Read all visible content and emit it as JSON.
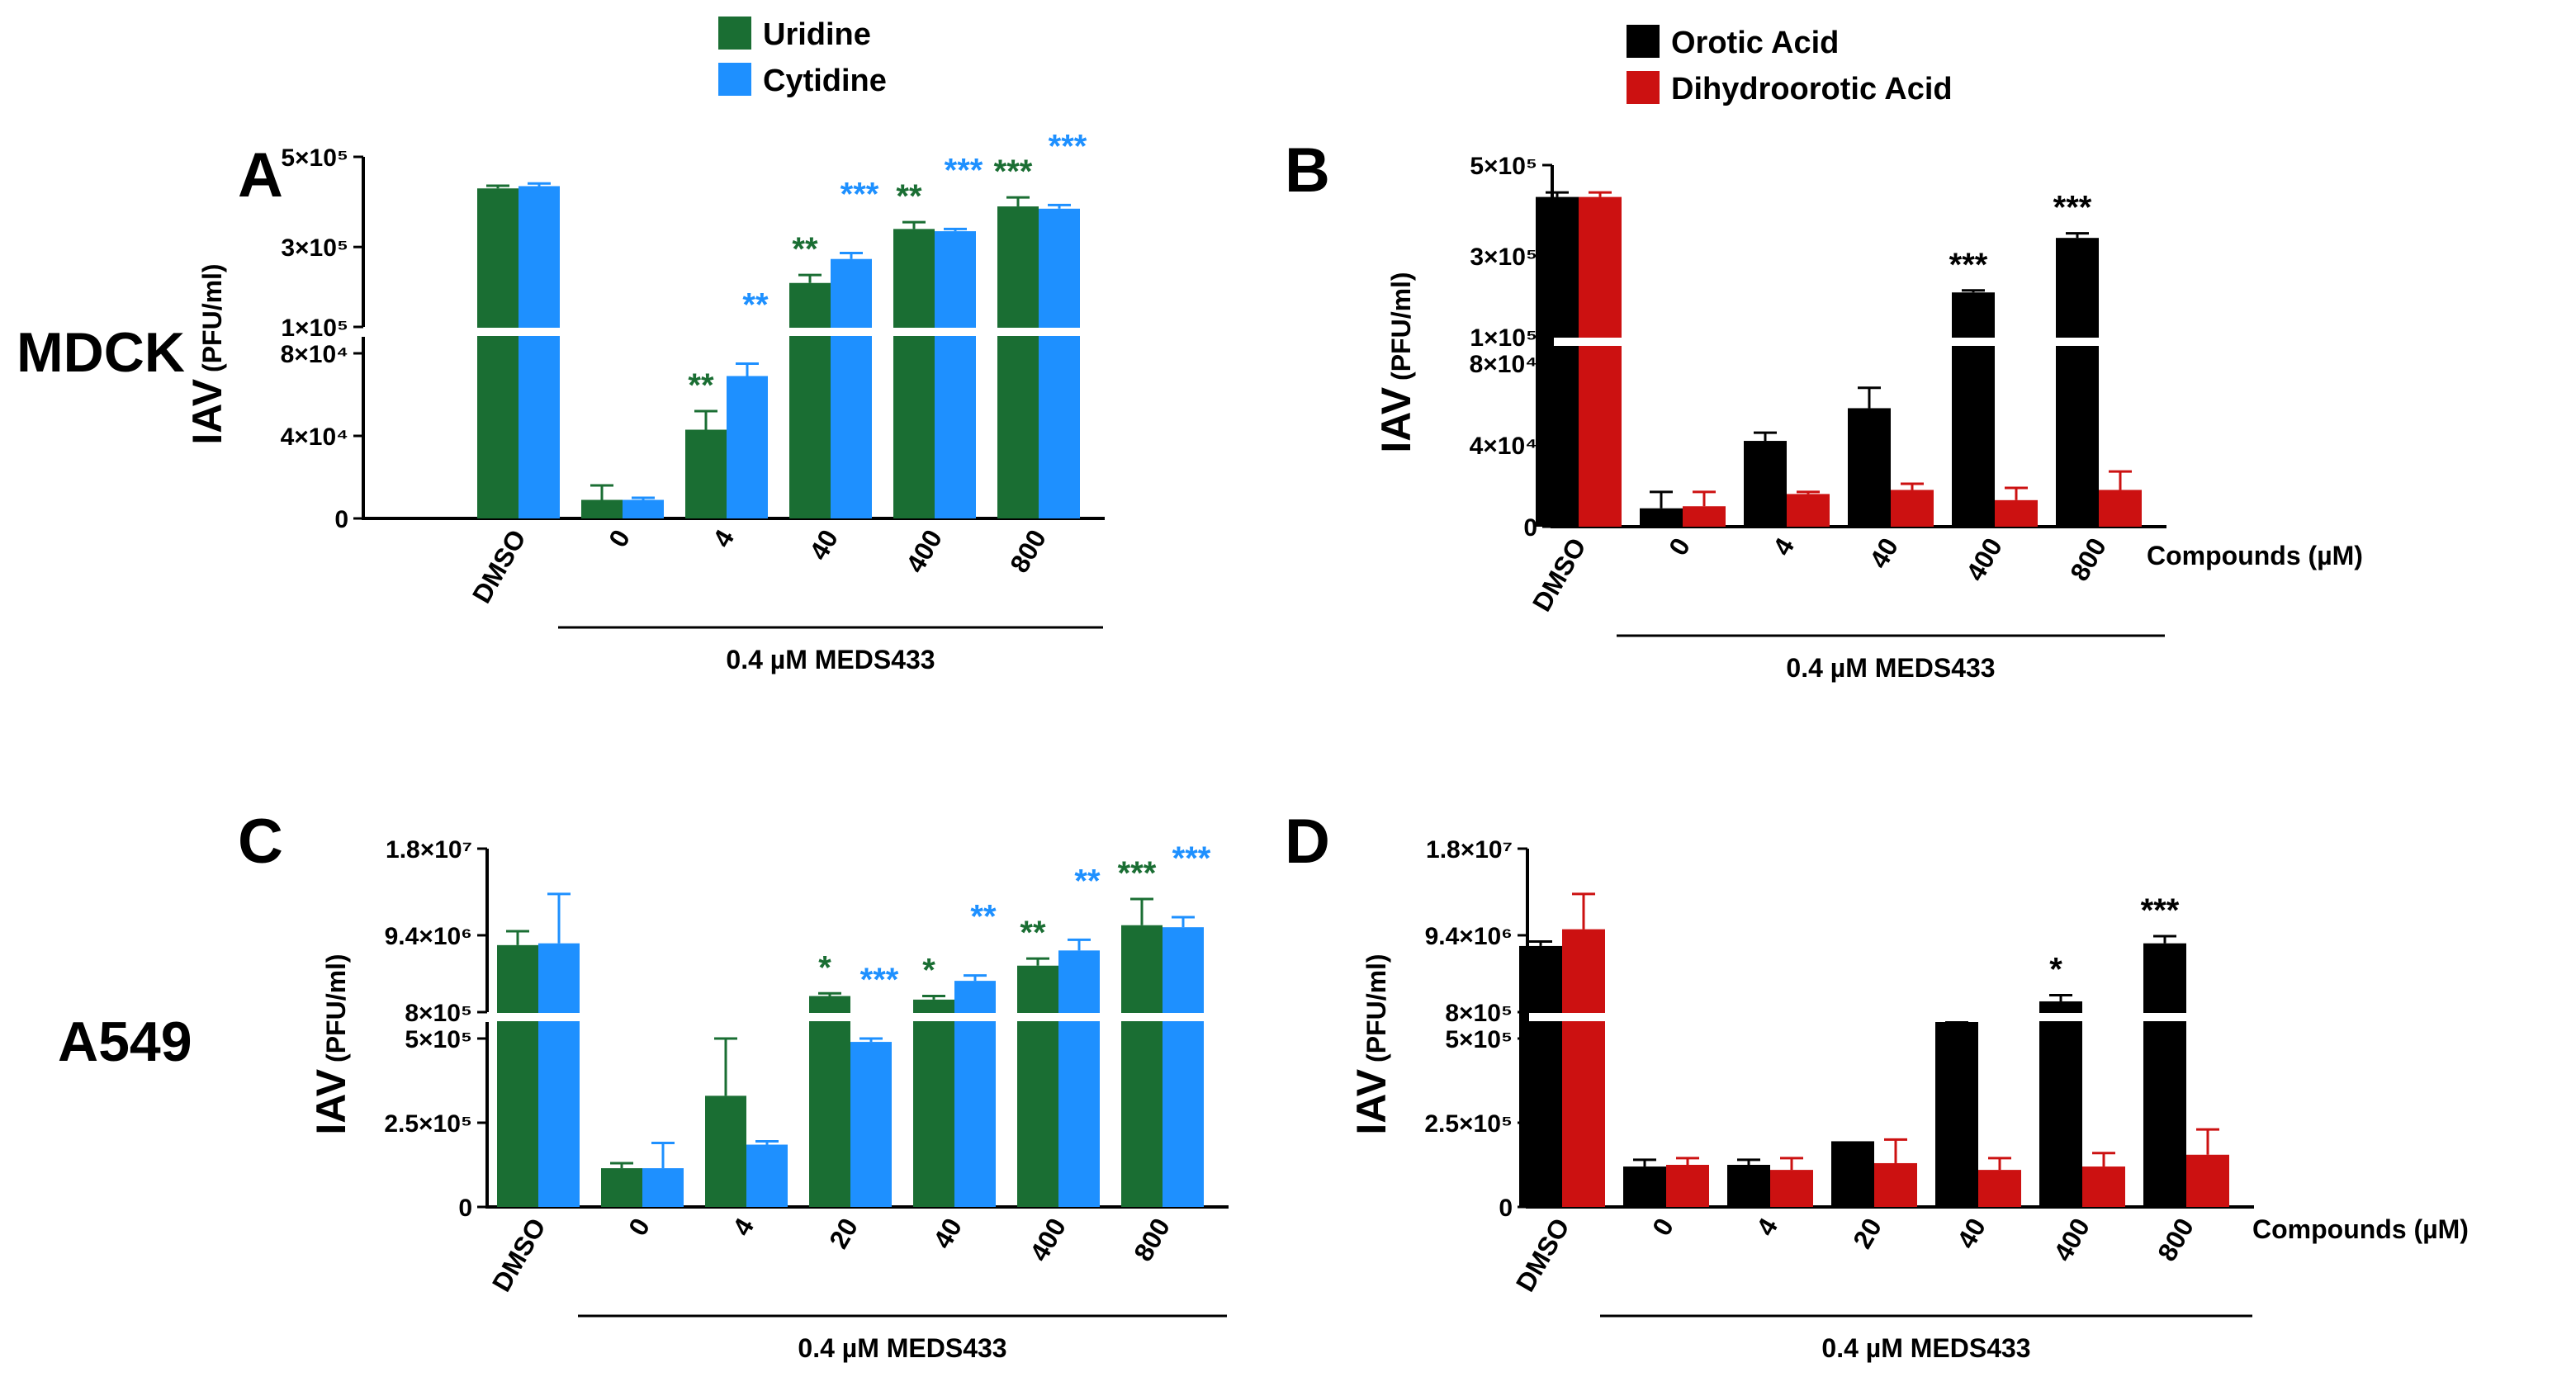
{
  "row_labels": [
    "MDCK",
    "A549"
  ],
  "colors": {
    "uridine": "#1a6e33",
    "cytidine": "#1e90ff",
    "orotic": "#000000",
    "dihydro": "#cc1111",
    "axis": "#000000"
  },
  "chart_data": [
    {
      "id": "A",
      "panel": "A",
      "type": "bar",
      "row": 0,
      "col": 0,
      "legend": [
        "Uridine",
        "Cytidine"
      ],
      "categories": [
        "DMSO",
        "0",
        "4",
        "40",
        "400",
        "800"
      ],
      "group_label": "0.4 µM MEDS433",
      "group_start": 1,
      "xlabel": "",
      "ylabel_main": "IAV",
      "ylabel_unit": "(PFU/ml)",
      "yticks": [
        {
          "label": "0",
          "value": 0
        },
        {
          "label": "4×10⁴",
          "value": 40000
        },
        {
          "label": "8×10⁴",
          "value": 80000
        },
        {
          "label": "1×10⁵",
          "value": 100000
        },
        {
          "label": "3×10⁵",
          "value": 300000
        },
        {
          "label": "5×10⁵",
          "value": 500000
        }
      ],
      "series": [
        {
          "name": "Uridine",
          "color": "#1a6e33",
          "values": [
            430000,
            9000,
            43000,
            210000,
            340000,
            390000
          ],
          "errors": [
            6000,
            7000,
            9000,
            20000,
            15000,
            20000
          ],
          "stars": [
            "",
            "",
            "**",
            "**",
            "**",
            "***"
          ]
        },
        {
          "name": "Cytidine",
          "color": "#1e90ff",
          "values": [
            435000,
            9000,
            69000,
            270000,
            335000,
            385000
          ],
          "errors": [
            6000,
            1000,
            6000,
            15000,
            5000,
            8000
          ],
          "stars": [
            "",
            "",
            "**",
            "***",
            "***",
            "***"
          ]
        }
      ]
    },
    {
      "id": "B",
      "panel": "B",
      "type": "bar",
      "row": 0,
      "col": 1,
      "legend": [
        "Orotic Acid",
        "Dihydroorotic Acid"
      ],
      "categories": [
        "DMSO",
        "0",
        "4",
        "40",
        "400",
        "800"
      ],
      "group_label": "0.4 µM MEDS433",
      "group_start": 1,
      "xlabel": "Compounds (µM)",
      "ylabel_main": "IAV",
      "ylabel_unit": "(PFU/ml)",
      "yticks": [
        {
          "label": "0",
          "value": 0
        },
        {
          "label": "4×10⁴",
          "value": 40000
        },
        {
          "label": "8×10⁴",
          "value": 80000
        },
        {
          "label": "1×10⁵",
          "value": 100000
        },
        {
          "label": "3×10⁵",
          "value": 300000
        },
        {
          "label": "5×10⁵",
          "value": 500000
        }
      ],
      "series": [
        {
          "name": "Orotic Acid",
          "color": "#000000",
          "values": [
            430000,
            9000,
            42000,
            58000,
            210000,
            340000
          ],
          "errors": [
            10000,
            8000,
            4000,
            10000,
            5000,
            10000
          ],
          "stars": [
            "",
            "",
            "",
            "",
            "***",
            "***"
          ]
        },
        {
          "name": "Dihydroorotic Acid",
          "color": "#cc1111",
          "values": [
            430000,
            10000,
            16000,
            18000,
            13000,
            18000
          ],
          "errors": [
            10000,
            7000,
            1000,
            3000,
            6000,
            9000
          ],
          "stars": [
            "",
            "",
            "",
            "",
            "",
            ""
          ]
        }
      ]
    },
    {
      "id": "C",
      "panel": "C",
      "type": "bar",
      "row": 1,
      "col": 0,
      "legend": [],
      "categories": [
        "DMSO",
        "0",
        "4",
        "20",
        "40",
        "400",
        "800"
      ],
      "group_label": "0.4 µM MEDS433",
      "group_start": 1,
      "xlabel": "",
      "ylabel_main": "IAV",
      "ylabel_unit": "(PFU/ml)",
      "yticks": [
        {
          "label": "0",
          "value": 0
        },
        {
          "label": "2.5×10⁵",
          "value": 250000
        },
        {
          "label": "5×10⁵",
          "value": 500000
        },
        {
          "label": "8×10⁵",
          "value": 800000
        },
        {
          "label": "9.4×10⁶",
          "value": 9400000
        },
        {
          "label": "1.8×10⁷",
          "value": 18000000
        }
      ],
      "series": [
        {
          "name": "Uridine",
          "color": "#1a6e33",
          "values": [
            8300000,
            115000,
            330000,
            2600000,
            2200000,
            6000000,
            10400000
          ],
          "errors": [
            1500000,
            15000,
            170000,
            300000,
            400000,
            800000,
            2600000
          ],
          "stars": [
            "",
            "",
            "",
            "*",
            "*",
            "**",
            "***"
          ]
        },
        {
          "name": "Cytidine",
          "color": "#1e90ff",
          "values": [
            8500000,
            115000,
            185000,
            490000,
            4300000,
            7700000,
            10200000
          ],
          "errors": [
            5000000,
            75000,
            10000,
            10000,
            600000,
            1200000,
            1000000
          ],
          "stars": [
            "",
            "",
            "",
            "***",
            "**",
            "**",
            "***"
          ]
        }
      ]
    },
    {
      "id": "D",
      "panel": "D",
      "type": "bar",
      "row": 1,
      "col": 1,
      "legend": [],
      "categories": [
        "DMSO",
        "0",
        "4",
        "20",
        "40",
        "400",
        "800"
      ],
      "group_label": "0.4 µM MEDS433",
      "group_start": 1,
      "xlabel": "Compounds (µM)",
      "ylabel_main": "IAV",
      "ylabel_unit": "(PFU/ml)",
      "yticks": [
        {
          "label": "0",
          "value": 0
        },
        {
          "label": "2.5×10⁵",
          "value": 250000
        },
        {
          "label": "5×10⁵",
          "value": 500000
        },
        {
          "label": "8×10⁵",
          "value": 800000
        },
        {
          "label": "9.4×10⁶",
          "value": 9400000
        },
        {
          "label": "1.8×10⁷",
          "value": 18000000
        }
      ],
      "series": [
        {
          "name": "Orotic Acid",
          "color": "#000000",
          "values": [
            8200000,
            120000,
            125000,
            195000,
            510000,
            2000000,
            8500000
          ],
          "errors": [
            500000,
            20000,
            15000,
            0,
            20000,
            700000,
            800000
          ],
          "stars": [
            "",
            "",
            "",
            "",
            "",
            "*",
            "***"
          ]
        },
        {
          "name": "Dihydroorotic Acid",
          "color": "#cc1111",
          "values": [
            10000000,
            125000,
            110000,
            130000,
            110000,
            120000,
            155000
          ],
          "errors": [
            3500000,
            20000,
            35000,
            70000,
            35000,
            40000,
            75000
          ],
          "stars": [
            "",
            "",
            "",
            "",
            "",
            "",
            ""
          ]
        }
      ]
    }
  ]
}
